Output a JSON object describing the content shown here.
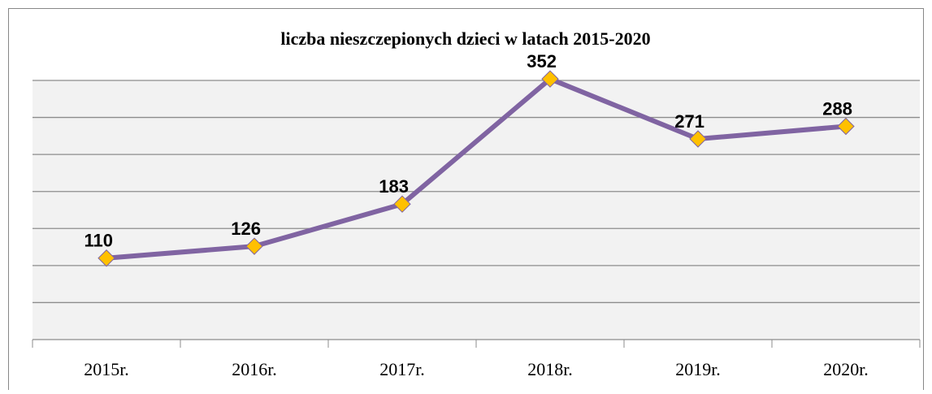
{
  "chart_data": {
    "type": "line",
    "title": "liczba nieszczepionych dzieci w latach 2015-2020",
    "categories": [
      "2015r.",
      "2016r.",
      "2017r.",
      "2018r.",
      "2019r.",
      "2020r."
    ],
    "series": [
      {
        "color": "#8064a2",
        "marker_color": "#ffc000",
        "values": [
          110,
          126,
          183,
          352,
          271,
          288
        ]
      }
    ],
    "ylim": [
      0,
      350
    ],
    "yticks": [
      0,
      50,
      100,
      150,
      200,
      250,
      300,
      350
    ],
    "grid": true
  }
}
